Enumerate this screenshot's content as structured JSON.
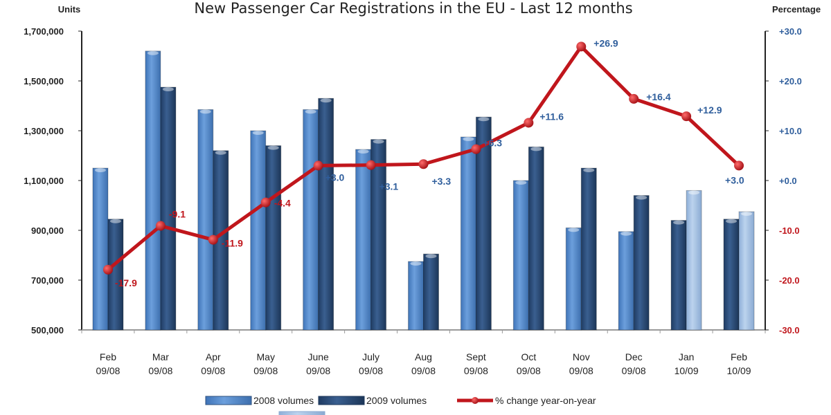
{
  "chart_data": {
    "type": "bar",
    "title": "New Passenger Car Registrations in the EU - Last 12 months",
    "ylabel": "Units",
    "y2label": "Percentage",
    "ylim": [
      500000,
      1700000
    ],
    "y2lim": [
      -30,
      30
    ],
    "yticks": [
      "1,700,000",
      "1,500,000",
      "1,300,000",
      "1,100,000",
      "900,000",
      "700,000",
      "500,000"
    ],
    "ytick_values": [
      1700000,
      1500000,
      1300000,
      1100000,
      900000,
      700000,
      500000
    ],
    "y2ticks": [
      "+30.0",
      "+20.0",
      "+10.0",
      "+0.0",
      "-10.0",
      "-20.0",
      "-30.0"
    ],
    "y2tick_values": [
      30,
      20,
      10,
      0,
      -10,
      -20,
      -30
    ],
    "categories": [
      {
        "month": "Feb",
        "period": "09/08"
      },
      {
        "month": "Mar",
        "period": "09/08"
      },
      {
        "month": "Apr",
        "period": "09/08"
      },
      {
        "month": "May",
        "period": "09/08"
      },
      {
        "month": "June",
        "period": "09/08"
      },
      {
        "month": "July",
        "period": "09/08"
      },
      {
        "month": "Aug",
        "period": "09/08"
      },
      {
        "month": "Sept",
        "period": "09/08"
      },
      {
        "month": "Oct",
        "period": "09/08"
      },
      {
        "month": "Nov",
        "period": "09/08"
      },
      {
        "month": "Dec",
        "period": "09/08"
      },
      {
        "month": "Jan",
        "period": "10/09"
      },
      {
        "month": "Feb",
        "period": "10/09"
      }
    ],
    "bar_groups": [
      [
        {
          "series": "2008",
          "value": 1150000
        },
        {
          "series": "2009",
          "value": 945000
        }
      ],
      [
        {
          "series": "2008",
          "value": 1620000
        },
        {
          "series": "2009",
          "value": 1475000
        }
      ],
      [
        {
          "series": "2008",
          "value": 1385000
        },
        {
          "series": "2009",
          "value": 1220000
        }
      ],
      [
        {
          "series": "2008",
          "value": 1300000
        },
        {
          "series": "2009",
          "value": 1240000
        }
      ],
      [
        {
          "series": "2008",
          "value": 1385000
        },
        {
          "series": "2009",
          "value": 1430000
        }
      ],
      [
        {
          "series": "2008",
          "value": 1225000
        },
        {
          "series": "2009",
          "value": 1265000
        }
      ],
      [
        {
          "series": "2008",
          "value": 775000
        },
        {
          "series": "2009",
          "value": 805000
        }
      ],
      [
        {
          "series": "2008",
          "value": 1275000
        },
        {
          "series": "2009",
          "value": 1355000
        }
      ],
      [
        {
          "series": "2008",
          "value": 1100000
        },
        {
          "series": "2009",
          "value": 1235000
        }
      ],
      [
        {
          "series": "2008",
          "value": 910000
        },
        {
          "series": "2009",
          "value": 1150000
        }
      ],
      [
        {
          "series": "2008",
          "value": 895000
        },
        {
          "series": "2009",
          "value": 1040000
        }
      ],
      [
        {
          "series": "2009",
          "value": 940000
        },
        {
          "series": "2010",
          "value": 1060000
        }
      ],
      [
        {
          "series": "2009",
          "value": 945000
        },
        {
          "series": "2010",
          "value": 975000
        }
      ]
    ],
    "line": {
      "name": "% change year-on-year",
      "values": [
        -17.9,
        -9.1,
        -11.9,
        -4.4,
        3.0,
        3.1,
        3.3,
        6.3,
        11.6,
        26.9,
        16.4,
        12.9,
        3.0
      ],
      "labels": [
        "-17.9",
        "-9.1",
        "-11.9",
        "-4.4",
        "+3.0",
        "+3.1",
        "+3.3",
        "+6.3",
        "+11.6",
        "+26.9",
        "+16.4",
        "+12.9",
        "+3.0"
      ]
    },
    "legend": {
      "placement": "bottom",
      "items": [
        {
          "key": "2008",
          "label": "2008 volumes"
        },
        {
          "key": "2009",
          "label": "2009 volumes"
        },
        {
          "key": "line",
          "label": "% change year-on-year"
        }
      ]
    },
    "colors": {
      "2008": "#5b8fd0",
      "2009": "#2c4f7c",
      "2010": "#a8c4e6",
      "line": "#c0161c",
      "positive_label": "#2f5e9c",
      "negative_label": "#c0161c"
    }
  }
}
